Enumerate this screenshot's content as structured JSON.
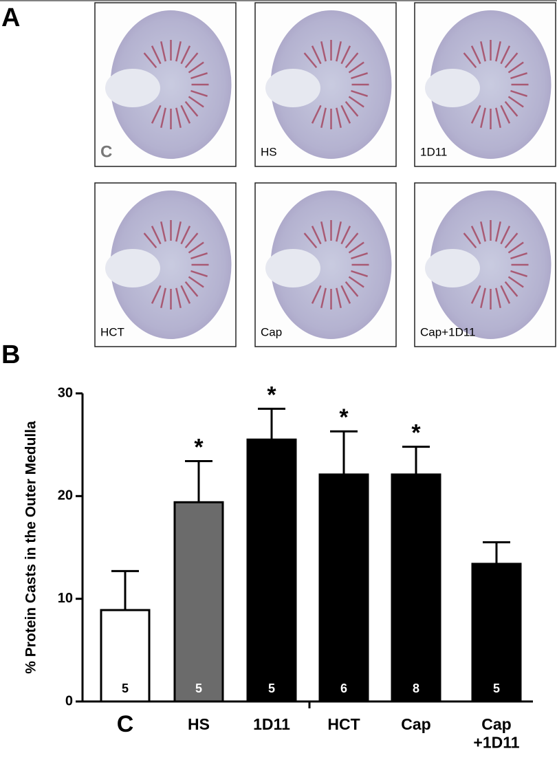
{
  "panels": {
    "a": "A",
    "b": "B"
  },
  "images": [
    {
      "label": "C"
    },
    {
      "label": "HS"
    },
    {
      "label": "1D11"
    },
    {
      "label": "HCT"
    },
    {
      "label": "Cap"
    },
    {
      "label": "Cap+1D11"
    }
  ],
  "chart_data": {
    "type": "bar",
    "ylabel": "% Protein Casts in the Outer Medulla",
    "categories": [
      "C",
      "HS",
      "1D11",
      "HCT",
      "Cap",
      "Cap\n+1D11"
    ],
    "values": [
      8.9,
      19.4,
      25.5,
      22.1,
      22.1,
      13.4
    ],
    "errors": [
      3.8,
      4.0,
      3.0,
      4.2,
      2.7,
      2.1
    ],
    "n": [
      5,
      5,
      5,
      6,
      8,
      5
    ],
    "annotations": [
      null,
      "*",
      "*",
      "*",
      "*",
      null
    ],
    "colors": [
      "#ffffff",
      "#6b6b6b",
      "#000000",
      "#000000",
      "#000000",
      "#000000"
    ],
    "ylim": [
      0,
      30
    ],
    "yticks": [
      0,
      10,
      20,
      30
    ]
  }
}
